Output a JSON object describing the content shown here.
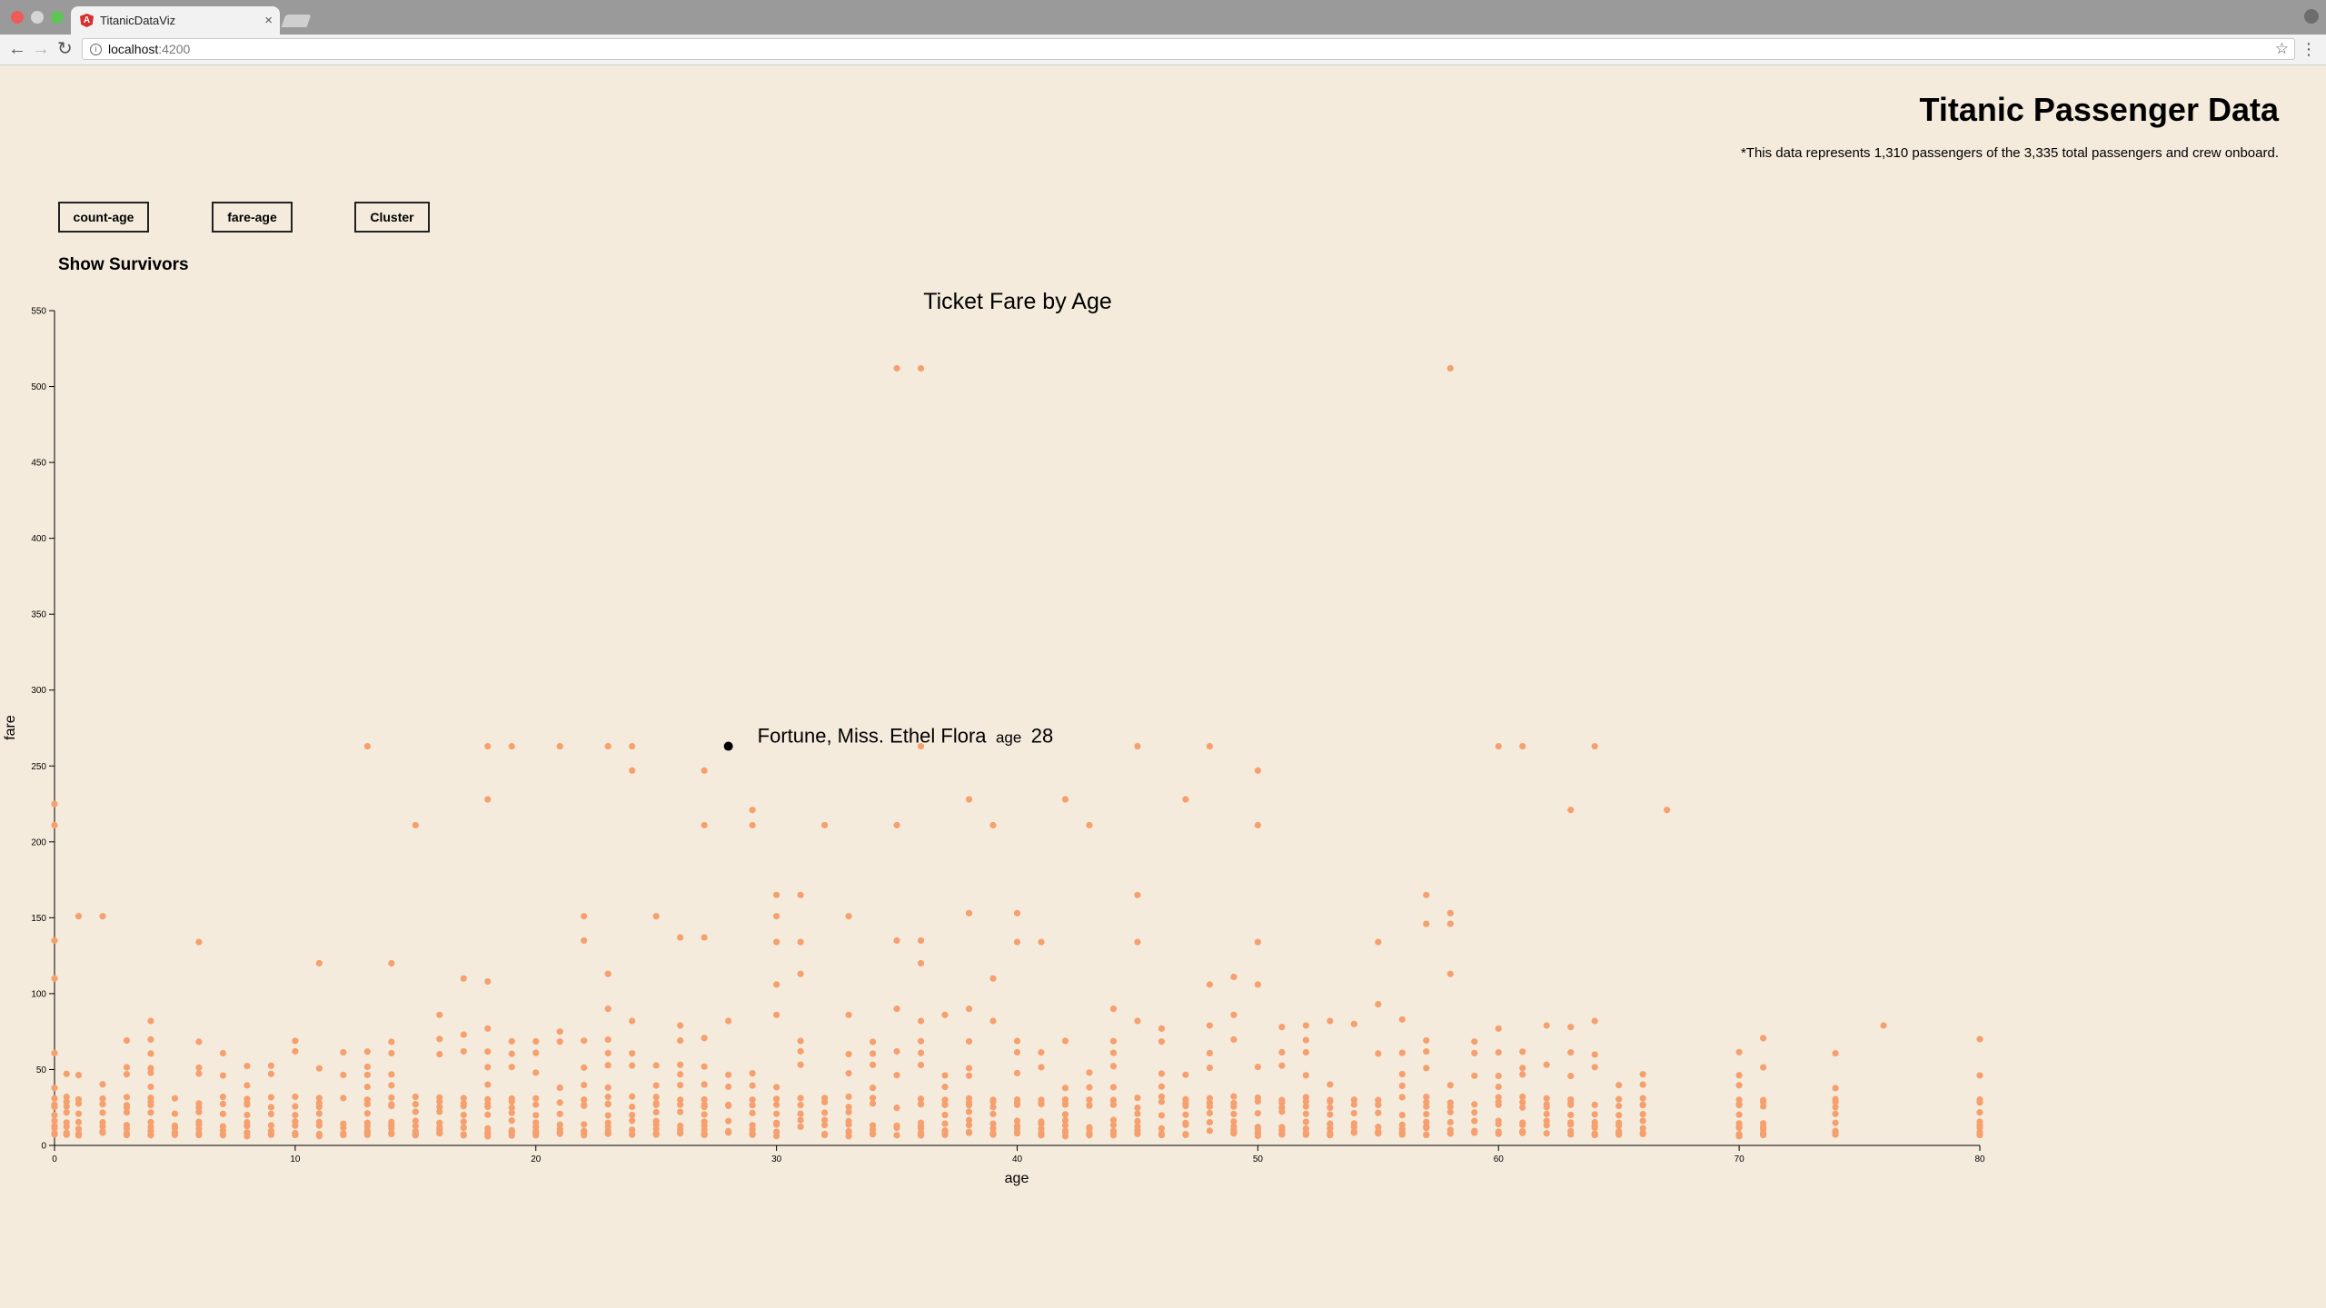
{
  "browser": {
    "tab_title": "TitanicDataViz",
    "url_host": "localhost",
    "url_port": ":4200"
  },
  "page": {
    "title": "Titanic Passenger Data",
    "subtitle": "*This data represents 1,310 passengers of the 3,335 total passengers and crew onboard.",
    "buttons": [
      "count-age",
      "fare-age",
      "Cluster"
    ],
    "show_survivors": "Show Survivors"
  },
  "tooltip": {
    "name": "Fortune, Miss. Ethel Flora",
    "age_label": "age",
    "age_value": "28",
    "point": {
      "age": 28,
      "fare": 263
    }
  },
  "colors": {
    "point": "#f5a06e",
    "highlight": "#000000",
    "background": "#f5ebdc"
  },
  "chart_data": {
    "type": "scatter",
    "title": "Ticket Fare by Age",
    "xlabel": "age",
    "ylabel": "fare",
    "xlim": [
      0,
      80
    ],
    "ylim": [
      0,
      550
    ],
    "x_ticks": [
      0,
      10,
      20,
      30,
      40,
      50,
      60,
      70,
      80
    ],
    "y_ticks": [
      0,
      50,
      100,
      150,
      200,
      250,
      300,
      350,
      400,
      450,
      500,
      550
    ],
    "points": [
      [
        35,
        512
      ],
      [
        36,
        512
      ],
      [
        58,
        512
      ],
      [
        13,
        263
      ],
      [
        18,
        263
      ],
      [
        19,
        263
      ],
      [
        21,
        263
      ],
      [
        23,
        263
      ],
      [
        24,
        263
      ],
      [
        36,
        263
      ],
      [
        45,
        263
      ],
      [
        48,
        263
      ],
      [
        60,
        263
      ],
      [
        61,
        263
      ],
      [
        64,
        263
      ],
      [
        24,
        247
      ],
      [
        27,
        247
      ],
      [
        50,
        247
      ],
      [
        0,
        225
      ],
      [
        18,
        228
      ],
      [
        29,
        221
      ],
      [
        38,
        228
      ],
      [
        42,
        228
      ],
      [
        47,
        228
      ],
      [
        63,
        221
      ],
      [
        67,
        221
      ],
      [
        0,
        211
      ],
      [
        15,
        211
      ],
      [
        27,
        211
      ],
      [
        29,
        211
      ],
      [
        32,
        211
      ],
      [
        35,
        211
      ],
      [
        39,
        211
      ],
      [
        43,
        211
      ],
      [
        50,
        211
      ],
      [
        30,
        165
      ],
      [
        31,
        165
      ],
      [
        45,
        165
      ],
      [
        57,
        165
      ],
      [
        1,
        151
      ],
      [
        2,
        151
      ],
      [
        22,
        151
      ],
      [
        25,
        151
      ],
      [
        30,
        151
      ],
      [
        33,
        151
      ],
      [
        38,
        153
      ],
      [
        40,
        153
      ],
      [
        58,
        153
      ],
      [
        57,
        146
      ],
      [
        58,
        146
      ],
      [
        0,
        135
      ],
      [
        6,
        134
      ],
      [
        22,
        135
      ],
      [
        26,
        137
      ],
      [
        27,
        137
      ],
      [
        30,
        134
      ],
      [
        31,
        134
      ],
      [
        35,
        135
      ],
      [
        36,
        135
      ],
      [
        40,
        134
      ],
      [
        41,
        134
      ],
      [
        45,
        134
      ],
      [
        50,
        134
      ],
      [
        55,
        134
      ],
      [
        11,
        120
      ],
      [
        14,
        120
      ],
      [
        31,
        113
      ],
      [
        36,
        120
      ],
      [
        58,
        113
      ],
      [
        0,
        110
      ],
      [
        17,
        110
      ],
      [
        18,
        108
      ],
      [
        23,
        113
      ],
      [
        30,
        106
      ],
      [
        39,
        110
      ],
      [
        48,
        106
      ],
      [
        50,
        106
      ],
      [
        49,
        111
      ],
      [
        4,
        82
      ],
      [
        16,
        86
      ],
      [
        17,
        73
      ],
      [
        18,
        77
      ],
      [
        21,
        75
      ],
      [
        23,
        90
      ],
      [
        24,
        82
      ],
      [
        26,
        79
      ],
      [
        28,
        82
      ],
      [
        30,
        86
      ],
      [
        33,
        86
      ],
      [
        35,
        90
      ],
      [
        36,
        82
      ],
      [
        37,
        86
      ],
      [
        38,
        90
      ],
      [
        39,
        82
      ],
      [
        44,
        90
      ],
      [
        45,
        82
      ],
      [
        46,
        77
      ],
      [
        48,
        79
      ],
      [
        49,
        86
      ],
      [
        51,
        78
      ],
      [
        52,
        79
      ],
      [
        53,
        82
      ],
      [
        54,
        80
      ],
      [
        55,
        93
      ],
      [
        56,
        83
      ],
      [
        60,
        77
      ],
      [
        62,
        79
      ],
      [
        63,
        78
      ],
      [
        64,
        82
      ],
      [
        76,
        79
      ]
    ],
    "dense_ages": [
      0,
      0.5,
      1,
      2,
      3,
      4,
      5,
      6,
      7,
      8,
      9,
      10,
      11,
      12,
      13,
      14,
      15,
      16,
      17,
      18,
      19,
      20,
      21,
      22,
      23,
      24,
      25,
      26,
      27,
      28,
      29,
      30,
      31,
      32,
      33,
      34,
      35,
      36,
      37,
      38,
      39,
      40,
      41,
      42,
      43,
      44,
      45,
      46,
      47,
      48,
      49,
      50,
      51,
      52,
      53,
      54,
      55,
      56,
      57,
      58,
      59,
      60,
      61,
      62,
      63,
      64,
      65,
      66,
      70,
      71,
      74,
      80
    ],
    "dense_fares": [
      7.25,
      7.9,
      8.05,
      10.5,
      13,
      15.5,
      21,
      26,
      27.7,
      31,
      39,
      46.9,
      52,
      61,
      69.5
    ]
  }
}
